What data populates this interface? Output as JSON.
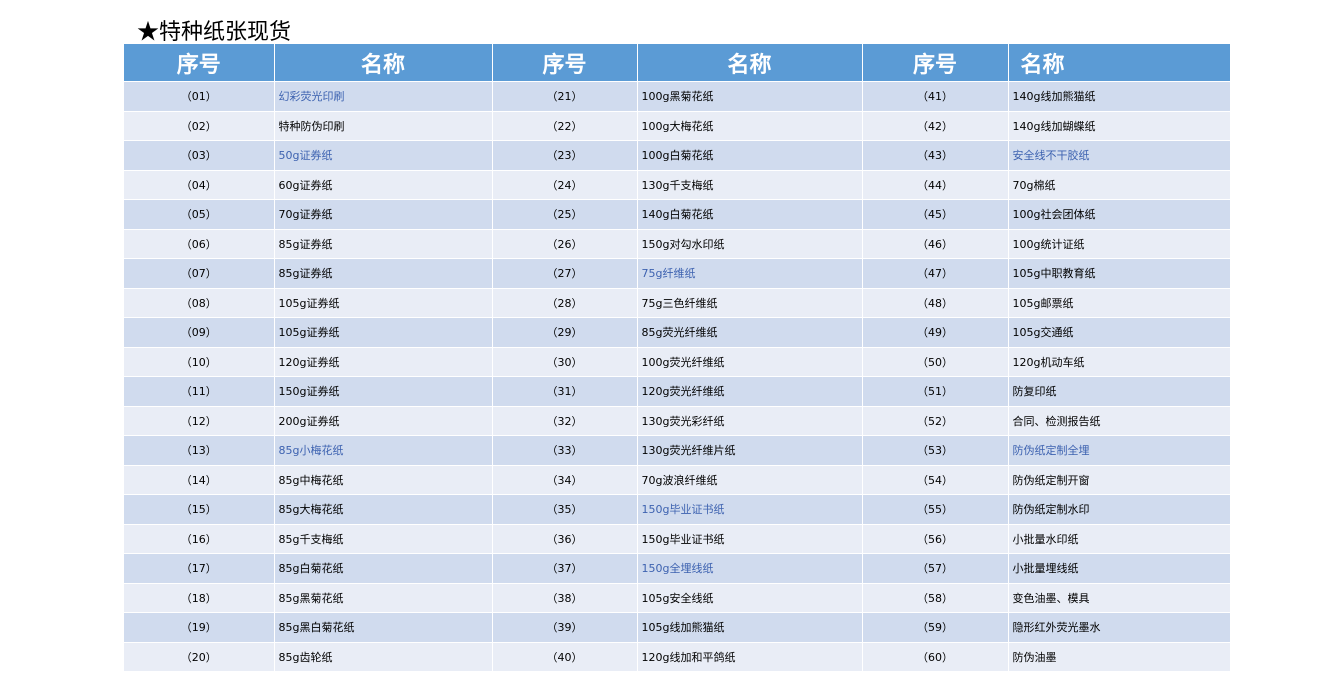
{
  "title": "★特种纸张现货",
  "headers": [
    "序号",
    "名称",
    "序号",
    "名称",
    "序号",
    "名称"
  ],
  "colors": {
    "header": "#5b9bd5",
    "row_odd": "#d0dbee",
    "row_even": "#e9edf6",
    "highlight_text": "#3d62b0"
  },
  "rows": [
    [
      {
        "no": "（01）",
        "name": "幻彩荧光印刷",
        "hl": true
      },
      {
        "no": "（21）",
        "name": "100g黑菊花纸",
        "hl": false
      },
      {
        "no": "（41）",
        "name": "140g线加熊猫纸",
        "hl": false
      }
    ],
    [
      {
        "no": "（02）",
        "name": "特种防伪印刷",
        "hl": false
      },
      {
        "no": "（22）",
        "name": "100g大梅花纸",
        "hl": false
      },
      {
        "no": "（42）",
        "name": "140g线加蝴蝶纸",
        "hl": false
      }
    ],
    [
      {
        "no": "（03）",
        "name": "50g证券纸",
        "hl": true
      },
      {
        "no": "（23）",
        "name": "100g白菊花纸",
        "hl": false
      },
      {
        "no": "（43）",
        "name": "安全线不干胶纸",
        "hl": true
      }
    ],
    [
      {
        "no": "（04）",
        "name": "60g证券纸",
        "hl": false
      },
      {
        "no": "（24）",
        "name": "130g千支梅纸",
        "hl": false
      },
      {
        "no": "（44）",
        "name": "70g棉纸",
        "hl": false
      }
    ],
    [
      {
        "no": "（05）",
        "name": "70g证券纸",
        "hl": false
      },
      {
        "no": "（25）",
        "name": "140g白菊花纸",
        "hl": false
      },
      {
        "no": "（45）",
        "name": "100g社会团体纸",
        "hl": false
      }
    ],
    [
      {
        "no": "（06）",
        "name": "85g证券纸",
        "hl": false
      },
      {
        "no": "（26）",
        "name": "150g对勾水印纸",
        "hl": false
      },
      {
        "no": "（46）",
        "name": "100g统计证纸",
        "hl": false
      }
    ],
    [
      {
        "no": "（07）",
        "name": "85g证券纸",
        "hl": false
      },
      {
        "no": "（27）",
        "name": "75g纤维纸",
        "hl": true
      },
      {
        "no": "（47）",
        "name": "105g中职教育纸",
        "hl": false
      }
    ],
    [
      {
        "no": "（08）",
        "name": "105g证券纸",
        "hl": false
      },
      {
        "no": "（28）",
        "name": "75g三色纤维纸",
        "hl": false
      },
      {
        "no": "（48）",
        "name": "105g邮票纸",
        "hl": false
      }
    ],
    [
      {
        "no": "（09）",
        "name": "105g证券纸",
        "hl": false
      },
      {
        "no": "（29）",
        "name": "85g荧光纤维纸",
        "hl": false
      },
      {
        "no": "（49）",
        "name": "105g交通纸",
        "hl": false
      }
    ],
    [
      {
        "no": "（10）",
        "name": "120g证券纸",
        "hl": false
      },
      {
        "no": "（30）",
        "name": "100g荧光纤维纸",
        "hl": false
      },
      {
        "no": "（50）",
        "name": "120g机动车纸",
        "hl": false
      }
    ],
    [
      {
        "no": "（11）",
        "name": "150g证券纸",
        "hl": false
      },
      {
        "no": "（31）",
        "name": "120g荧光纤维纸",
        "hl": false
      },
      {
        "no": "（51）",
        "name": "防复印纸",
        "hl": false
      }
    ],
    [
      {
        "no": "（12）",
        "name": "200g证券纸",
        "hl": false
      },
      {
        "no": "（32）",
        "name": "130g荧光彩纤纸",
        "hl": false
      },
      {
        "no": "（52）",
        "name": "合同、检测报告纸",
        "hl": false
      }
    ],
    [
      {
        "no": "（13）",
        "name": "85g小梅花纸",
        "hl": true
      },
      {
        "no": "（33）",
        "name": "130g荧光纤维片纸",
        "hl": false
      },
      {
        "no": "（53）",
        "name": "防伪纸定制全埋",
        "hl": true
      }
    ],
    [
      {
        "no": "（14）",
        "name": "85g中梅花纸",
        "hl": false
      },
      {
        "no": "（34）",
        "name": "70g波浪纤维纸",
        "hl": false
      },
      {
        "no": "（54）",
        "name": "防伪纸定制开窗",
        "hl": false
      }
    ],
    [
      {
        "no": "（15）",
        "name": "85g大梅花纸",
        "hl": false
      },
      {
        "no": "（35）",
        "name": "150g毕业证书纸",
        "hl": true
      },
      {
        "no": "（55）",
        "name": "防伪纸定制水印",
        "hl": false
      }
    ],
    [
      {
        "no": "（16）",
        "name": "85g千支梅纸",
        "hl": false
      },
      {
        "no": "（36）",
        "name": "150g毕业证书纸",
        "hl": false
      },
      {
        "no": "（56）",
        "name": "小批量水印纸",
        "hl": false
      }
    ],
    [
      {
        "no": "（17）",
        "name": "85g白菊花纸",
        "hl": false
      },
      {
        "no": "（37）",
        "name": "150g全埋线纸",
        "hl": true
      },
      {
        "no": "（57）",
        "name": "小批量埋线纸",
        "hl": false
      }
    ],
    [
      {
        "no": "（18）",
        "name": "85g黑菊花纸",
        "hl": false
      },
      {
        "no": "（38）",
        "name": "105g安全线纸",
        "hl": false
      },
      {
        "no": "（58）",
        "name": "变色油墨、模具",
        "hl": false
      }
    ],
    [
      {
        "no": "（19）",
        "name": "85g黑白菊花纸",
        "hl": false
      },
      {
        "no": "（39）",
        "name": "105g线加熊猫纸",
        "hl": false
      },
      {
        "no": "（59）",
        "name": "隐形红外荧光墨水",
        "hl": false
      }
    ],
    [
      {
        "no": "（20）",
        "name": "85g齿轮纸",
        "hl": false
      },
      {
        "no": "（40）",
        "name": "120g线加和平鸽纸",
        "hl": false
      },
      {
        "no": "（60）",
        "name": "防伪油墨",
        "hl": false
      }
    ]
  ]
}
